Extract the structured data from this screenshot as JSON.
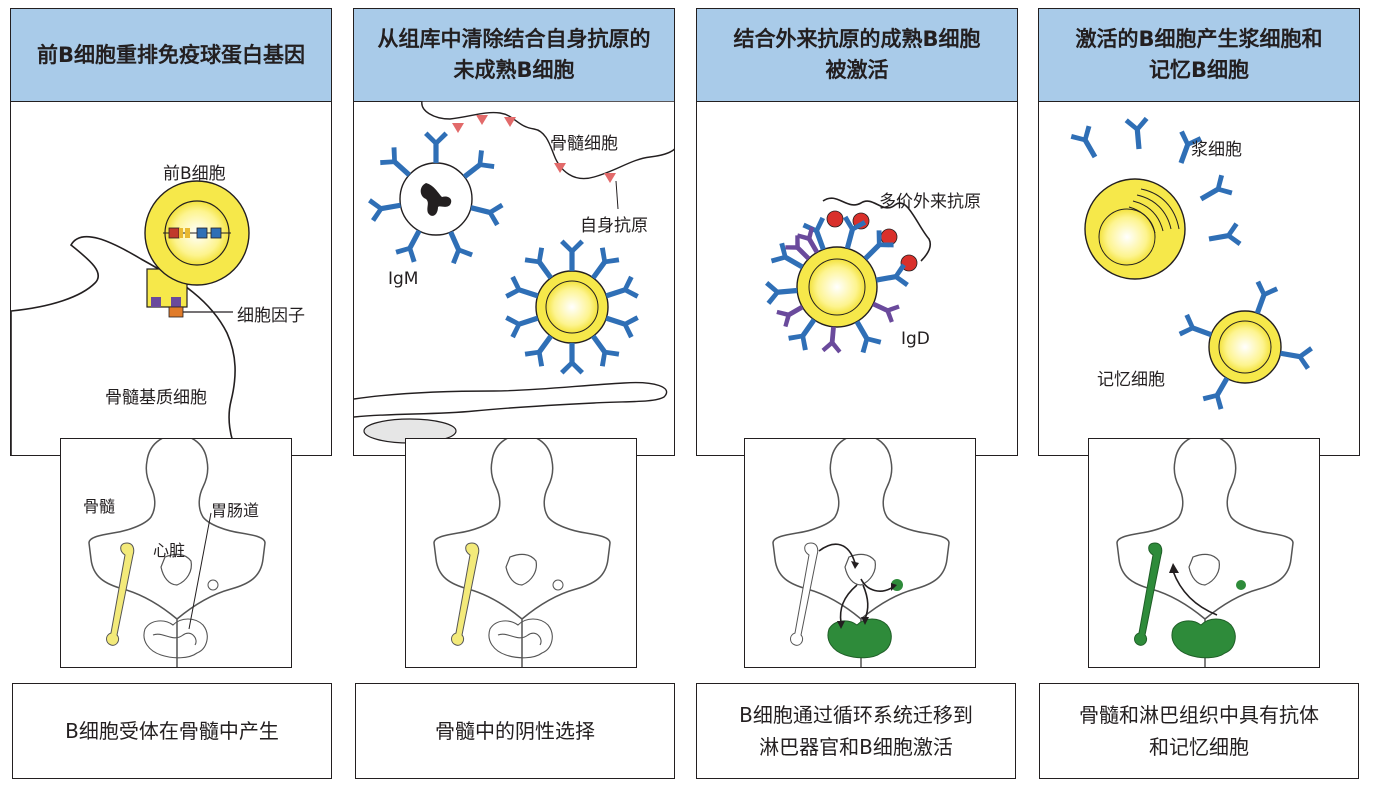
{
  "panels": [
    {
      "title": "前B细胞重排免疫球蛋白基因",
      "labels": {
        "cell": "前B细胞",
        "cytokine": "细胞因子",
        "stromal": "骨髓基质细胞"
      },
      "body_labels": {
        "marrow": "骨髓",
        "heart": "心脏",
        "gut": "胃肠道"
      },
      "caption": "B细胞受体在骨髓中产生"
    },
    {
      "title": "从组库中清除结合自身抗原的\n未成熟B细胞",
      "labels": {
        "marrow_cell": "骨髓细胞",
        "self_antigen": "自身抗原",
        "igm": "IgM"
      },
      "caption": "骨髓中的阴性选择"
    },
    {
      "title": "结合外来抗原的成熟B细胞\n被激活",
      "labels": {
        "antigen": "多价外来抗原",
        "igd": "IgD"
      },
      "caption": "B细胞通过循环系统迁移到\n淋巴器官和B细胞激活"
    },
    {
      "title": "激活的B细胞产生浆细胞和\n记忆B细胞",
      "labels": {
        "plasma": "浆细胞",
        "memory": "记忆细胞"
      },
      "caption": "骨髓和淋巴组织中具有抗体\n和记忆细胞"
    }
  ],
  "colors": {
    "header_bg": "#a9cbe9",
    "cell_yellow": "#f6e84a",
    "antibody_blue": "#2f6fb6",
    "igd_purple": "#6a4a9c",
    "antigen_red": "#d9302b",
    "self_antigen_pink": "#e26a6a",
    "lymph_green": "#2e8b3a",
    "bone_yellow": "#f3ea7a"
  }
}
